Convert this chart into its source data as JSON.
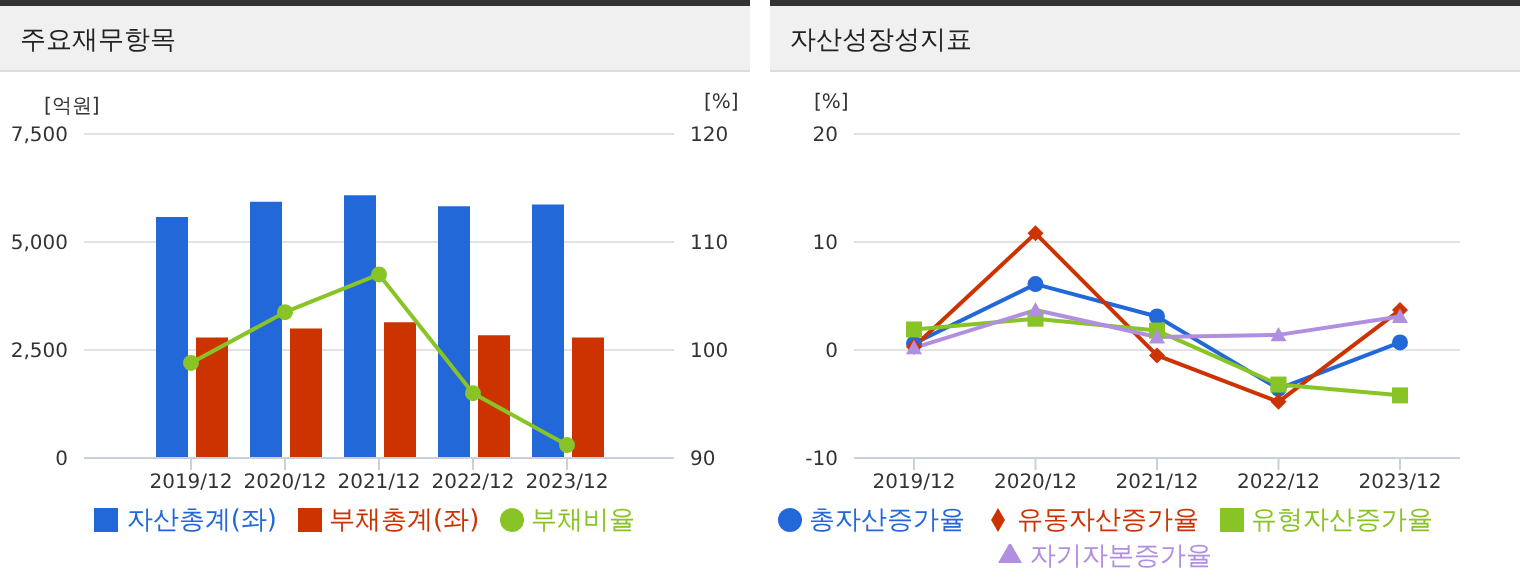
{
  "chart_data": [
    {
      "type": "bar",
      "title": "주요재무항목",
      "ylabel": "[억원]",
      "y2label": "[%]",
      "categories": [
        "2019/12",
        "2020/12",
        "2021/12",
        "2022/12",
        "2023/12"
      ],
      "series": [
        {
          "name": "자산총계(좌)",
          "color": "#2268d8",
          "values": [
            5580,
            5930,
            6080,
            5830,
            5870
          ]
        },
        {
          "name": "부채총계(좌)",
          "color": "#cc3300",
          "values": [
            2790,
            3000,
            3140,
            2840,
            2790
          ]
        },
        {
          "name": "부채비율",
          "type": "line",
          "axis": "y2",
          "marker": "circle",
          "color": "#88c425",
          "values": [
            98.8,
            103.5,
            107.0,
            96.0,
            91.2
          ]
        }
      ],
      "ylim": [
        0,
        7500
      ],
      "yticks": [
        {
          "value": 0,
          "label": "0"
        },
        {
          "value": 2500,
          "label": "2,500"
        },
        {
          "value": 5000,
          "label": "5,000"
        },
        {
          "value": 7500,
          "label": "7,500"
        }
      ],
      "y2lim": [
        90,
        120
      ],
      "y2ticks": [
        90,
        100,
        110,
        120
      ],
      "grid": "y",
      "legend": "bottom"
    },
    {
      "type": "line",
      "title": "자산성장성지표",
      "ylabel": "[%]",
      "categories": [
        "2019/12",
        "2020/12",
        "2021/12",
        "2022/12",
        "2023/12"
      ],
      "series": [
        {
          "name": "총자산증가율",
          "marker": "circle",
          "color": "#2268d8",
          "values": [
            0.6,
            6.1,
            3.1,
            -3.6,
            0.7
          ]
        },
        {
          "name": "유동자산증가율",
          "marker": "diamond",
          "color": "#cc3300",
          "values": [
            0.3,
            10.8,
            -0.5,
            -4.8,
            3.7
          ]
        },
        {
          "name": "유형자산증가율",
          "marker": "square",
          "color": "#88c425",
          "values": [
            1.9,
            2.9,
            1.8,
            -3.2,
            -4.2
          ]
        },
        {
          "name": "자기자본증가율",
          "marker": "triangle",
          "color": "#b18fe0",
          "values": [
            0.2,
            3.7,
            1.2,
            1.4,
            3.1
          ]
        }
      ],
      "ylim": [
        -10,
        20
      ],
      "yticks": [
        -10,
        0,
        10,
        20
      ],
      "grid": "y",
      "legend": "bottom"
    }
  ]
}
